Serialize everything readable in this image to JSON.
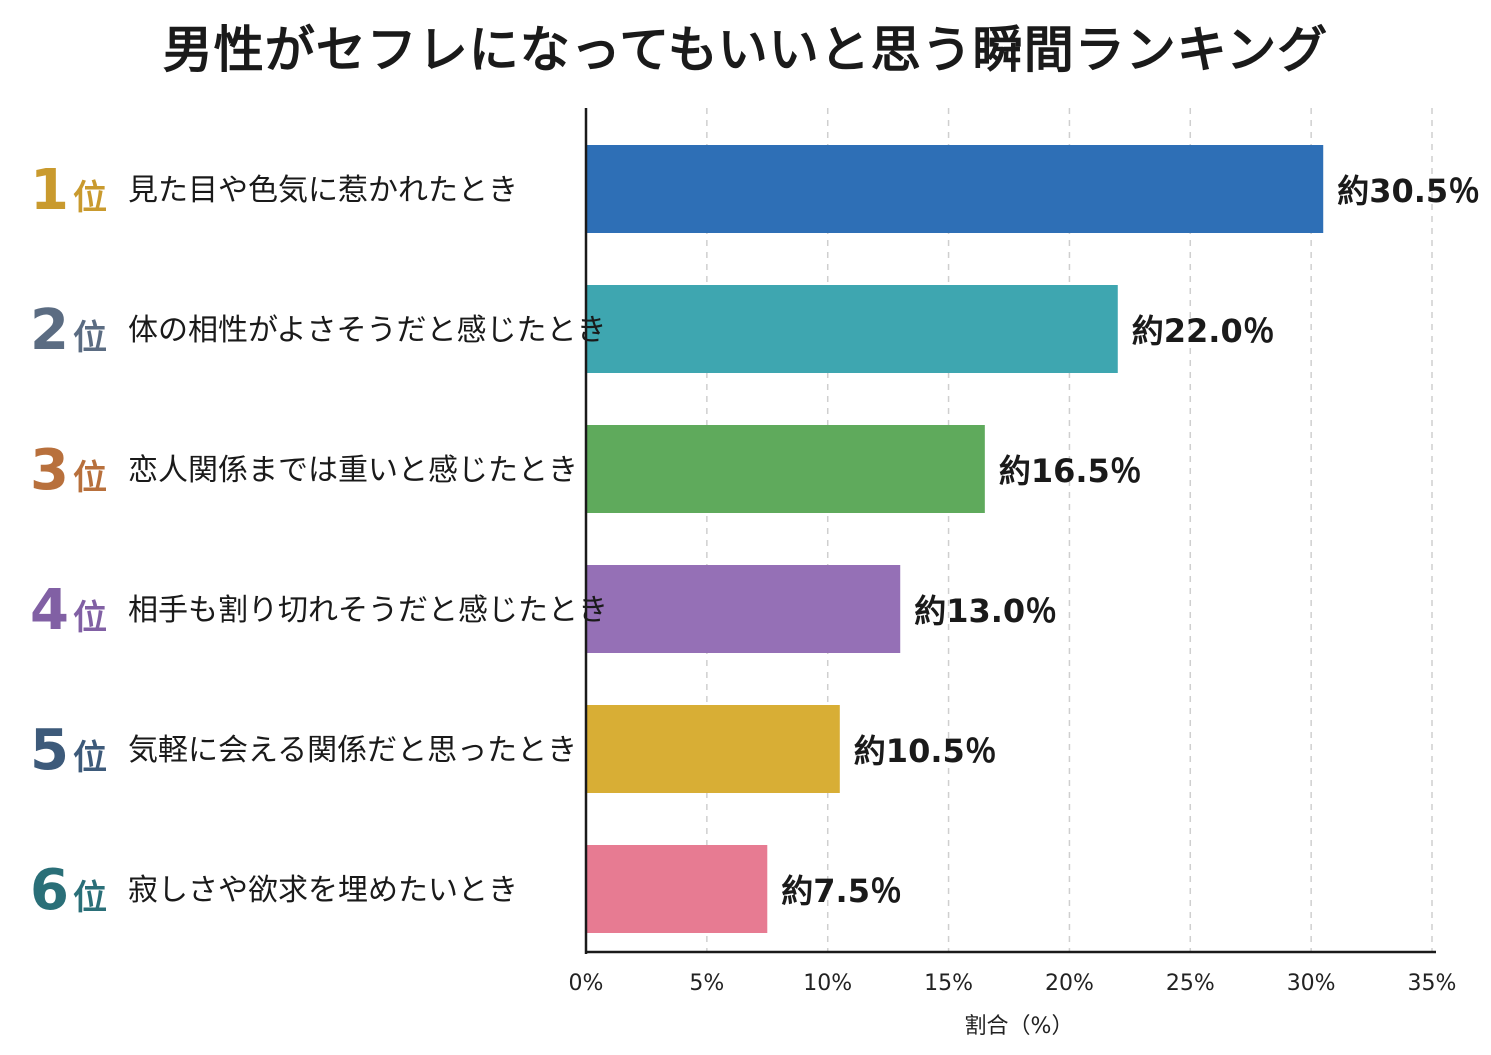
{
  "chart_data": {
    "type": "bar",
    "orientation": "horizontal",
    "title": "男性がセフレになってもいいと思う瞬間ランキング",
    "xlabel": "割合（%）",
    "xlim": [
      0,
      35
    ],
    "xticks": [
      "0%",
      "5%",
      "10%",
      "15%",
      "20%",
      "25%",
      "30%",
      "35%"
    ],
    "grid": "vertical dashed",
    "rank_suffix": "位",
    "categories": [
      "見た目や色気に惹かれたとき",
      "体の相性がよさそうだと感じたとき",
      "恋人関係までは重いと感じたとき",
      "相手も割り切れそうだと感じたとき",
      "気軽に会える関係だと思ったとき",
      "寂しさや欲求を埋めたいとき"
    ],
    "ranks": [
      "1",
      "2",
      "3",
      "4",
      "5",
      "6"
    ],
    "values": [
      30.5,
      22.0,
      16.5,
      13.0,
      10.5,
      7.5
    ],
    "data_labels": [
      "約30.5％",
      "約22.0％",
      "約16.5％",
      "約13.0％",
      "約10.5％",
      "約7.5％"
    ],
    "bar_colors": [
      "#2e6fb6",
      "#3ea6b0",
      "#5faa5c",
      "#9570b6",
      "#d8ae35",
      "#e77b92"
    ],
    "rank_colors": [
      "#c99a2e",
      "#5b6c82",
      "#b8703c",
      "#8160a4",
      "#3d5a7a",
      "#2a6f78"
    ]
  }
}
